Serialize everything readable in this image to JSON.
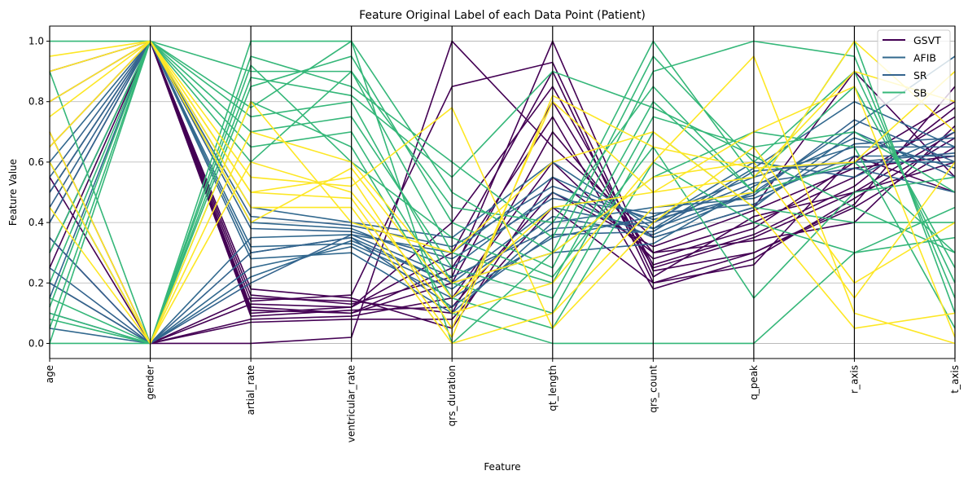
{
  "chart_data": {
    "type": "parallel_coordinates",
    "title": "Feature Original Label of each Data Point (Patient)",
    "xlabel": "Feature",
    "ylabel": "Feature Value",
    "ylim": [
      -0.05,
      1.05
    ],
    "yticks": [
      "0.0",
      "0.2",
      "0.4",
      "0.6",
      "0.8",
      "1.0"
    ],
    "grid": true,
    "legend_position": "top-right",
    "features": [
      "age",
      "gender",
      "artial_rate",
      "ventricular_rate",
      "qrs_duration",
      "qt_length",
      "qrs_count",
      "q_peak",
      "r_axis",
      "t_axis"
    ],
    "series": [
      {
        "name": "GSVT",
        "color": "#440154",
        "in_legend": true,
        "lines": [
          [
            0.3,
            1,
            0.12,
            0.1,
            0.2,
            0.8,
            0.25,
            0.35,
            0.5,
            0.7
          ],
          [
            0.6,
            0,
            0.15,
            0.14,
            0.1,
            0.7,
            0.3,
            0.4,
            0.55,
            0.75
          ],
          [
            0.8,
            1,
            0.1,
            0.12,
            0.3,
            0.9,
            0.2,
            0.3,
            0.45,
            0.65
          ],
          [
            0.2,
            0,
            0.08,
            0.09,
            0.15,
            0.6,
            0.28,
            0.38,
            0.6,
            0.8
          ],
          [
            0.5,
            1,
            0.14,
            0.16,
            0.85,
            0.93,
            0.22,
            0.42,
            0.5,
            0.6
          ],
          [
            0.7,
            0,
            0.0,
            0.02,
            1.0,
            0.65,
            0.35,
            0.45,
            0.9,
            0.55
          ],
          [
            0.4,
            1,
            0.18,
            0.15,
            0.05,
            0.55,
            0.3,
            0.34,
            0.4,
            0.72
          ],
          [
            0.9,
            1,
            0.11,
            0.1,
            0.25,
            0.75,
            0.18,
            0.28,
            0.48,
            0.68
          ],
          [
            0.35,
            0,
            0.13,
            0.12,
            0.4,
            0.85,
            0.26,
            0.36,
            0.52,
            0.78
          ],
          [
            0.65,
            1,
            0.09,
            0.11,
            0.12,
            0.5,
            0.32,
            0.44,
            0.58,
            0.62
          ],
          [
            0.25,
            1,
            0.16,
            0.13,
            0.22,
            1.0,
            0.24,
            0.3,
            0.46,
            0.85
          ],
          [
            0.55,
            0,
            0.07,
            0.08,
            0.08,
            0.45,
            0.2,
            0.26,
            0.62,
            0.5
          ]
        ]
      },
      {
        "name": "AFIB",
        "color": "#31688e",
        "in_legend": true,
        "lines": [
          [
            0.3,
            1,
            0.3,
            0.35,
            0.2,
            0.45,
            0.38,
            0.5,
            0.6,
            0.6
          ],
          [
            0.1,
            0,
            0.25,
            0.32,
            0.15,
            0.35,
            0.42,
            0.55,
            0.65,
            0.65
          ],
          [
            0.5,
            1,
            0.4,
            0.38,
            0.25,
            0.5,
            0.35,
            0.45,
            0.7,
            0.55
          ],
          [
            0.2,
            0,
            0.35,
            0.36,
            0.3,
            0.55,
            0.4,
            0.6,
            0.55,
            0.7
          ],
          [
            0.4,
            1,
            0.28,
            0.3,
            0.1,
            0.4,
            0.45,
            0.48,
            0.62,
            0.62
          ],
          [
            0.05,
            0,
            0.22,
            0.34,
            0.2,
            0.3,
            0.33,
            0.52,
            0.68,
            0.58
          ],
          [
            0.6,
            1,
            0.45,
            0.4,
            0.35,
            0.6,
            0.38,
            0.58,
            0.8,
            0.65
          ],
          [
            0.15,
            1,
            0.32,
            0.33,
            0.18,
            0.42,
            0.36,
            0.5,
            0.72,
            0.95
          ]
        ]
      },
      {
        "name": "SR",
        "color": "#33638d",
        "in_legend": true,
        "lines": [
          [
            0.35,
            0,
            0.2,
            0.36,
            0.22,
            0.38,
            0.4,
            0.53,
            0.58,
            0.5
          ],
          [
            0.45,
            1,
            0.38,
            0.37,
            0.28,
            0.48,
            0.43,
            0.46,
            0.66,
            0.68
          ],
          [
            0.25,
            0,
            0.3,
            0.35,
            0.12,
            0.36,
            0.37,
            0.57,
            0.6,
            0.63
          ],
          [
            0.55,
            1,
            0.42,
            0.39,
            0.32,
            0.52,
            0.41,
            0.49,
            0.74,
            0.6
          ]
        ]
      },
      {
        "name": "SB",
        "color": "#35b779",
        "in_legend": true,
        "lines": [
          [
            0.0,
            1,
            0.9,
            0.9,
            0.3,
            0.2,
            0.8,
            0.5,
            0.6,
            0.3
          ],
          [
            0.1,
            0,
            1.0,
            1.0,
            0.5,
            0.3,
            0.95,
            0.6,
            0.9,
            0.2
          ],
          [
            0.05,
            1,
            0.75,
            0.8,
            0.2,
            0.1,
            0.7,
            0.45,
            0.4,
            0.4
          ],
          [
            0.9,
            0,
            0.85,
            0.95,
            0.4,
            0.25,
            0.9,
            1.0,
            0.95,
            0.15
          ],
          [
            0.3,
            1,
            0.65,
            0.7,
            0.15,
            0.05,
            0.6,
            0.4,
            0.3,
            0.45
          ],
          [
            0.15,
            0,
            0.95,
            0.85,
            0.6,
            0.35,
            1.0,
            0.55,
            0.85,
            0.25
          ],
          [
            1.0,
            1,
            0.7,
            0.75,
            0.25,
            0.15,
            0.75,
            0.65,
            0.7,
            0.5
          ],
          [
            0.0,
            0,
            0.8,
            0.65,
            0.1,
            0.0,
            0.0,
            0.0,
            0.3,
            0.35
          ],
          [
            0.2,
            1,
            0.6,
            0.9,
            0.45,
            0.4,
            0.85,
            0.5,
            1.0,
            0.1
          ],
          [
            0.08,
            0,
            0.92,
            0.6,
            0.35,
            0.22,
            0.65,
            0.15,
            0.5,
            0.55
          ],
          [
            0.12,
            1,
            0.78,
            1.0,
            0.0,
            0.3,
            0.55,
            0.7,
            0.65,
            0.05
          ],
          [
            0.6,
            0,
            0.88,
            0.82,
            0.55,
            0.9,
            0.78,
            0.62,
            0.45,
            0.3
          ]
        ]
      },
      {
        "color": "#fde725",
        "in_legend": false,
        "lines": [
          [
            0.9,
            1,
            0.5,
            0.55,
            0.05,
            0.8,
            0.5,
            0.55,
            0.9,
            0.8
          ],
          [
            0.7,
            0,
            0.6,
            0.5,
            0.1,
            0.2,
            0.6,
            0.95,
            0.1,
            0.0
          ],
          [
            0.8,
            1,
            0.45,
            0.45,
            0.0,
            0.1,
            0.45,
            0.5,
            1.0,
            0.7
          ],
          [
            0.6,
            0,
            0.7,
            0.6,
            0.2,
            0.3,
            0.55,
            0.6,
            0.15,
            0.6
          ],
          [
            0.95,
            1,
            0.55,
            0.52,
            0.78,
            0.05,
            0.4,
            0.65,
            0.2,
            0.4
          ],
          [
            0.45,
            0,
            0.8,
            0.4,
            0.3,
            0.6,
            0.7,
            0.45,
            0.05,
            0.1
          ],
          [
            0.75,
            1,
            0.4,
            0.58,
            0.15,
            0.45,
            0.5,
            0.7,
            0.85,
            0.02
          ],
          [
            0.65,
            1,
            0.5,
            0.48,
            0.02,
            0.82,
            0.65,
            0.58,
            0.6,
            0.9
          ]
        ]
      }
    ]
  }
}
